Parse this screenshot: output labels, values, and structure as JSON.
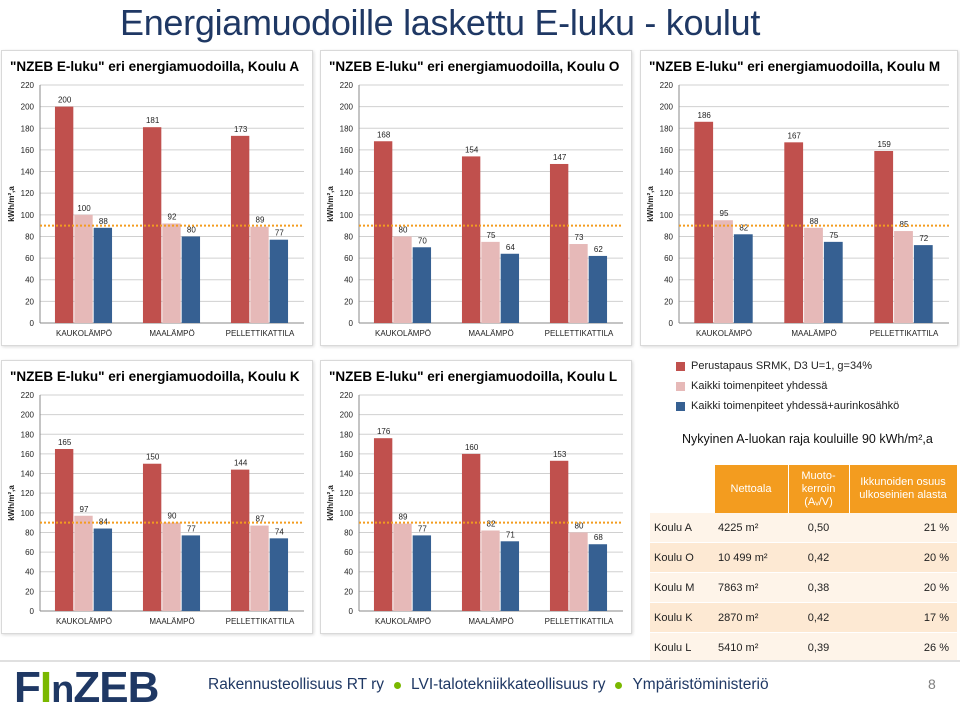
{
  "slide": {
    "title": "Energiamuodoille laskettu E-luku - koulut",
    "page_number": "8"
  },
  "colors": {
    "series": [
      "#c0504d",
      "#e6b9b8",
      "#366092"
    ],
    "reference_line": "#f39c1f",
    "table_header": "#f39c1f",
    "title": "#1f3864",
    "logo_blue": "#1f3864",
    "logo_green": "#7ab800"
  },
  "legend": [
    {
      "label": "Perustapaus SRMK, D3 U=1, g=34%",
      "color": "#c0504d"
    },
    {
      "label": "Kaikki toimenpiteet yhdessä",
      "color": "#e6b9b8"
    },
    {
      "label": "Kaikki toimenpiteet yhdessä+aurinkosähkö",
      "color": "#366092"
    }
  ],
  "reference_note": "Nykyinen A-luokan raja kouluille 90 kWh/m²,a",
  "chart_data": [
    {
      "type": "bar",
      "title": "\"NZEB E-luku\" eri energiamuodoilla, Koulu A",
      "ylabel": "kWh/m²,a",
      "ylim": [
        0,
        220
      ],
      "yticks": [
        0,
        20,
        40,
        60,
        80,
        100,
        120,
        140,
        160,
        180,
        200,
        220
      ],
      "categories": [
        "KAUKOLÄMPÖ",
        "MAALÄMPÖ",
        "PELLETTIKATTILA"
      ],
      "series": [
        {
          "name": "Perustapaus SRMK, D3 U=1, g=34%",
          "values": [
            200,
            181,
            173
          ]
        },
        {
          "name": "Kaikki toimenpiteet yhdessä",
          "values": [
            100,
            92,
            89
          ]
        },
        {
          "name": "Kaikki toimenpiteet yhdessä+aurinkosähkö",
          "values": [
            88,
            80,
            77
          ]
        }
      ],
      "reference_line": 90,
      "grid": true
    },
    {
      "type": "bar",
      "title": "\"NZEB E-luku\" eri energiamuodoilla, Koulu O",
      "ylabel": "kWh/m²,a",
      "ylim": [
        0,
        220
      ],
      "yticks": [
        0,
        20,
        40,
        60,
        80,
        100,
        120,
        140,
        160,
        180,
        200,
        220
      ],
      "categories": [
        "KAUKOLÄMPÖ",
        "MAALÄMPÖ",
        "PELLETTIKATTILA"
      ],
      "series": [
        {
          "name": "Perustapaus SRMK, D3 U=1, g=34%",
          "values": [
            168,
            154,
            147
          ]
        },
        {
          "name": "Kaikki toimenpiteet yhdessä",
          "values": [
            80,
            75,
            73
          ]
        },
        {
          "name": "Kaikki toimenpiteet yhdessä+aurinkosähkö",
          "values": [
            70,
            64,
            62
          ]
        }
      ],
      "reference_line": 90,
      "grid": true
    },
    {
      "type": "bar",
      "title": "\"NZEB E-luku\" eri energiamuodoilla, Koulu M",
      "ylabel": "kWh/m²,a",
      "ylim": [
        0,
        220
      ],
      "yticks": [
        0,
        20,
        40,
        60,
        80,
        100,
        120,
        140,
        160,
        180,
        200,
        220
      ],
      "categories": [
        "KAUKOLÄMPÖ",
        "MAALÄMPÖ",
        "PELLETTIKATTILA"
      ],
      "series": [
        {
          "name": "Perustapaus SRMK, D3 U=1, g=34%",
          "values": [
            186,
            167,
            159
          ]
        },
        {
          "name": "Kaikki toimenpiteet yhdessä",
          "values": [
            95,
            88,
            85
          ]
        },
        {
          "name": "Kaikki toimenpiteet yhdessä+aurinkosähkö",
          "values": [
            82,
            75,
            72
          ]
        }
      ],
      "reference_line": 90,
      "grid": true
    },
    {
      "type": "bar",
      "title": "\"NZEB E-luku\" eri energiamuodoilla, Koulu K",
      "ylabel": "kWh/m²,a",
      "ylim": [
        0,
        220
      ],
      "yticks": [
        0,
        20,
        40,
        60,
        80,
        100,
        120,
        140,
        160,
        180,
        200,
        220
      ],
      "categories": [
        "KAUKOLÄMPÖ",
        "MAALÄMPÖ",
        "PELLETTIKATTILA"
      ],
      "series": [
        {
          "name": "Perustapaus SRMK, D3 U=1, g=34%",
          "values": [
            165,
            150,
            144
          ]
        },
        {
          "name": "Kaikki toimenpiteet yhdessä",
          "values": [
            97,
            90,
            87
          ]
        },
        {
          "name": "Kaikki toimenpiteet yhdessä+aurinkosähkö",
          "values": [
            84,
            77,
            74
          ]
        }
      ],
      "reference_line": 90,
      "grid": true
    },
    {
      "type": "bar",
      "title": "\"NZEB E-luku\" eri energiamuodoilla, Koulu L",
      "ylabel": "kWh/m²,a",
      "ylim": [
        0,
        220
      ],
      "yticks": [
        0,
        20,
        40,
        60,
        80,
        100,
        120,
        140,
        160,
        180,
        200,
        220
      ],
      "categories": [
        "KAUKOLÄMPÖ",
        "MAALÄMPÖ",
        "PELLETTIKATTILA"
      ],
      "series": [
        {
          "name": "Perustapaus SRMK, D3 U=1, g=34%",
          "values": [
            176,
            160,
            153
          ]
        },
        {
          "name": "Kaikki toimenpiteet yhdessä",
          "values": [
            89,
            82,
            80
          ]
        },
        {
          "name": "Kaikki toimenpiteet yhdessä+aurinkosähkö",
          "values": [
            77,
            71,
            68
          ]
        }
      ],
      "reference_line": 90,
      "grid": true
    }
  ],
  "table": {
    "headers": [
      "",
      "Nettoala",
      "Muoto-kerroin (Aᵥ/V)",
      "Ikkunoiden osuus ulkoseinien alasta"
    ],
    "rows": [
      [
        "Koulu A",
        "4225  m²",
        "0,50",
        "21 %"
      ],
      [
        "Koulu O",
        "10 499 m²",
        "0,42",
        "20 %"
      ],
      [
        "Koulu M",
        "7863 m²",
        "0,38",
        "20 %"
      ],
      [
        "Koulu K",
        "2870 m²",
        "0,42",
        "17 %"
      ],
      [
        "Koulu L",
        "5410 m²",
        "0,39",
        "26 %"
      ]
    ]
  },
  "footer": {
    "logo_text": "FInZEB",
    "organizations": [
      "Rakennusteollisuus RT ry",
      "LVI-talotekniikkateollisuus ry",
      "Ympäristöministeriö"
    ]
  }
}
